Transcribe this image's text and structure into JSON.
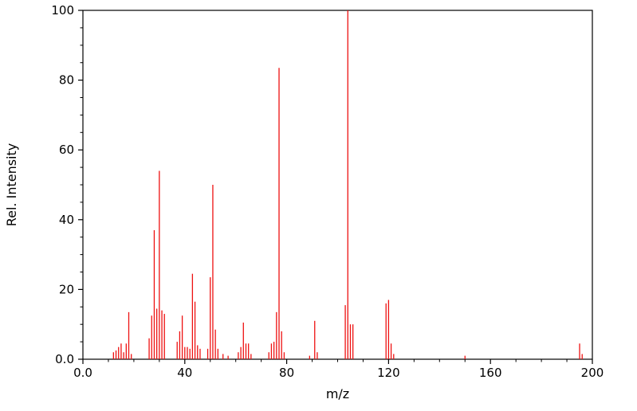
{
  "chart_data": {
    "type": "bar",
    "subtype": "mass-spectrum-stick-plot",
    "title": "",
    "xlabel": "m/z",
    "ylabel": "Rel. Intensity",
    "xlim": [
      0,
      200
    ],
    "ylim": [
      0,
      100
    ],
    "grid": false,
    "legend": "none",
    "x_major_ticks": [
      0,
      40,
      80,
      120,
      160,
      200
    ],
    "x_tick_labels": [
      "0.0",
      "40",
      "80",
      "120",
      "160",
      "200"
    ],
    "x_minor_step": 10,
    "y_major_ticks": [
      0,
      20,
      40,
      60,
      80,
      100
    ],
    "y_tick_labels": [
      "0.0",
      "20",
      "40",
      "60",
      "80",
      "100"
    ],
    "y_minor_step": 5,
    "series_color": "#ee1111",
    "axis_color": "#000000",
    "background_color": "#ffffff",
    "peaks_format": "[m/z, relative_intensity]",
    "peaks": [
      [
        12,
        2.0
      ],
      [
        13,
        2.5
      ],
      [
        14,
        3.5
      ],
      [
        15,
        4.5
      ],
      [
        16,
        2.0
      ],
      [
        17,
        4.5
      ],
      [
        18,
        13.5
      ],
      [
        19,
        1.5
      ],
      [
        26,
        6.0
      ],
      [
        27,
        12.5
      ],
      [
        28,
        37.0
      ],
      [
        29,
        14.5
      ],
      [
        30,
        54.0
      ],
      [
        31,
        14.0
      ],
      [
        32,
        13.0
      ],
      [
        37,
        5.0
      ],
      [
        38,
        8.0
      ],
      [
        39,
        12.5
      ],
      [
        40,
        3.5
      ],
      [
        41,
        3.5
      ],
      [
        42,
        3.0
      ],
      [
        43,
        24.5
      ],
      [
        44,
        16.5
      ],
      [
        45,
        4.0
      ],
      [
        46,
        3.0
      ],
      [
        49,
        3.0
      ],
      [
        50,
        23.5
      ],
      [
        51,
        50.0
      ],
      [
        52,
        8.5
      ],
      [
        53,
        3.0
      ],
      [
        55,
        1.5
      ],
      [
        57,
        1.0
      ],
      [
        61,
        2.0
      ],
      [
        62,
        3.5
      ],
      [
        63,
        10.5
      ],
      [
        64,
        4.5
      ],
      [
        65,
        4.5
      ],
      [
        66,
        1.5
      ],
      [
        73,
        2.0
      ],
      [
        74,
        4.5
      ],
      [
        75,
        5.0
      ],
      [
        76,
        13.5
      ],
      [
        77,
        83.5
      ],
      [
        78,
        8.0
      ],
      [
        79,
        2.0
      ],
      [
        89,
        1.0
      ],
      [
        91,
        11.0
      ],
      [
        92,
        2.0
      ],
      [
        103,
        15.5
      ],
      [
        104,
        100.0
      ],
      [
        105,
        10.0
      ],
      [
        106,
        10.0
      ],
      [
        119,
        16.0
      ],
      [
        120,
        17.0
      ],
      [
        121,
        4.5
      ],
      [
        122,
        1.5
      ],
      [
        150,
        1.0
      ],
      [
        195,
        4.5
      ],
      [
        196,
        1.5
      ]
    ]
  }
}
